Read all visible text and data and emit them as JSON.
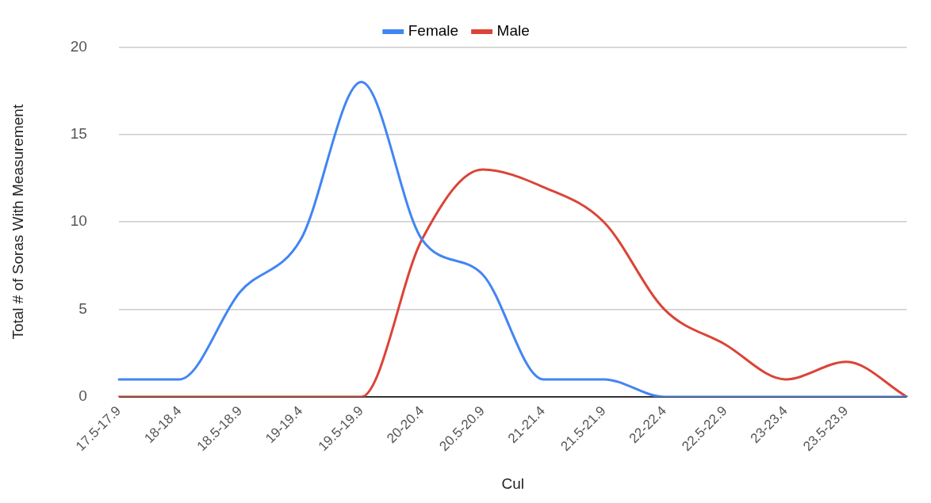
{
  "chart_data": {
    "type": "line",
    "xlabel": "Cul",
    "ylabel": "Total # of Soras With Measurement",
    "categories": [
      "17.5-17.9",
      "18-18.4",
      "18.5-18.9",
      "19-19.4",
      "19.5-19.9",
      "20-20.4",
      "20.5-20.9",
      "21-21.4",
      "21.5-21.9",
      "22-22.4",
      "22.5-22.9",
      "23-23.4",
      "23.5-23.9",
      null
    ],
    "series": [
      {
        "name": "Female",
        "color": "#4285f4",
        "values": [
          1,
          1,
          6,
          9,
          18,
          9,
          7,
          1,
          1,
          0,
          0,
          0,
          0,
          0
        ]
      },
      {
        "name": "Male",
        "color": "#db4437",
        "values": [
          0,
          0,
          0,
          0,
          0,
          9,
          13,
          12,
          10,
          5,
          3,
          1,
          2,
          0
        ]
      }
    ],
    "ylim": [
      0,
      20
    ],
    "yticks": [
      0,
      5,
      10,
      15,
      20
    ],
    "grid": "y",
    "legend": "top",
    "marker": "none",
    "line_style": "solid"
  }
}
